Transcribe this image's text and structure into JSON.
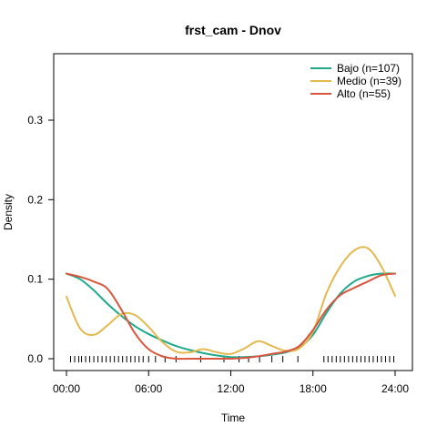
{
  "chart_data": {
    "type": "line",
    "title": "frst_cam - Dnov",
    "xlabel": "Time",
    "ylabel": "Density",
    "xlim": [
      0,
      24
    ],
    "ylim": [
      -0.01,
      0.38
    ],
    "x_ticks": [
      0,
      6,
      12,
      18,
      24
    ],
    "x_tick_labels": [
      "00:00",
      "06:00",
      "12:00",
      "18:00",
      "24:00"
    ],
    "y_ticks": [
      0.0,
      0.1,
      0.2,
      0.3
    ],
    "y_tick_labels": [
      "0.0",
      "0.1",
      "0.2",
      "0.3"
    ],
    "grid": false,
    "legend_position": "top-right",
    "series": [
      {
        "name": "Bajo (n=107)",
        "color": "#1fa88a",
        "x": [
          0,
          1,
          2,
          3,
          4,
          5,
          6,
          7,
          8,
          9,
          10,
          11,
          12,
          13,
          14,
          15,
          16,
          17,
          18,
          19,
          20,
          21,
          22,
          23,
          24
        ],
        "y": [
          0.107,
          0.1,
          0.086,
          0.069,
          0.054,
          0.041,
          0.031,
          0.023,
          0.016,
          0.011,
          0.007,
          0.004,
          0.002,
          0.002,
          0.003,
          0.005,
          0.008,
          0.014,
          0.03,
          0.058,
          0.082,
          0.097,
          0.104,
          0.107,
          0.107
        ]
      },
      {
        "name": "Medio (n=39)",
        "color": "#e3b94e",
        "x": [
          0,
          1,
          2,
          3,
          4,
          5,
          6,
          7,
          8,
          9,
          10,
          11,
          12,
          13,
          14,
          15,
          16,
          17,
          18,
          19,
          20,
          21,
          22,
          23,
          24
        ],
        "y": [
          0.078,
          0.038,
          0.03,
          0.042,
          0.056,
          0.055,
          0.04,
          0.021,
          0.009,
          0.008,
          0.012,
          0.008,
          0.006,
          0.013,
          0.022,
          0.016,
          0.01,
          0.013,
          0.034,
          0.083,
          0.116,
          0.136,
          0.139,
          0.116,
          0.079
        ]
      },
      {
        "name": "Alto (n=55)",
        "color": "#d9553e",
        "x": [
          0,
          1,
          2,
          3,
          4,
          5,
          6,
          7,
          8,
          9,
          10,
          11,
          12,
          13,
          14,
          15,
          16,
          17,
          18,
          19,
          20,
          21,
          22,
          23,
          24
        ],
        "y": [
          0.107,
          0.103,
          0.097,
          0.088,
          0.062,
          0.032,
          0.012,
          0.003,
          0.0,
          0.0,
          0.0,
          0.0,
          0.0,
          0.001,
          0.003,
          0.006,
          0.009,
          0.016,
          0.036,
          0.062,
          0.08,
          0.089,
          0.097,
          0.105,
          0.107
        ]
      }
    ],
    "rug_times": [
      0.3,
      0.6,
      0.9,
      1.1,
      1.4,
      1.7,
      2.0,
      2.3,
      2.6,
      2.9,
      3.2,
      3.5,
      3.8,
      4.1,
      4.4,
      4.7,
      5.0,
      5.3,
      5.6,
      6.0,
      6.5,
      7.2,
      8.0,
      9.8,
      11.5,
      12.6,
      13.3,
      14.1,
      15.0,
      15.8,
      16.9,
      18.8,
      19.1,
      19.4,
      19.7,
      20.0,
      20.3,
      20.6,
      20.9,
      21.2,
      21.5,
      21.8,
      22.1,
      22.4,
      22.7,
      23.0,
      23.3,
      23.6,
      23.9
    ]
  }
}
